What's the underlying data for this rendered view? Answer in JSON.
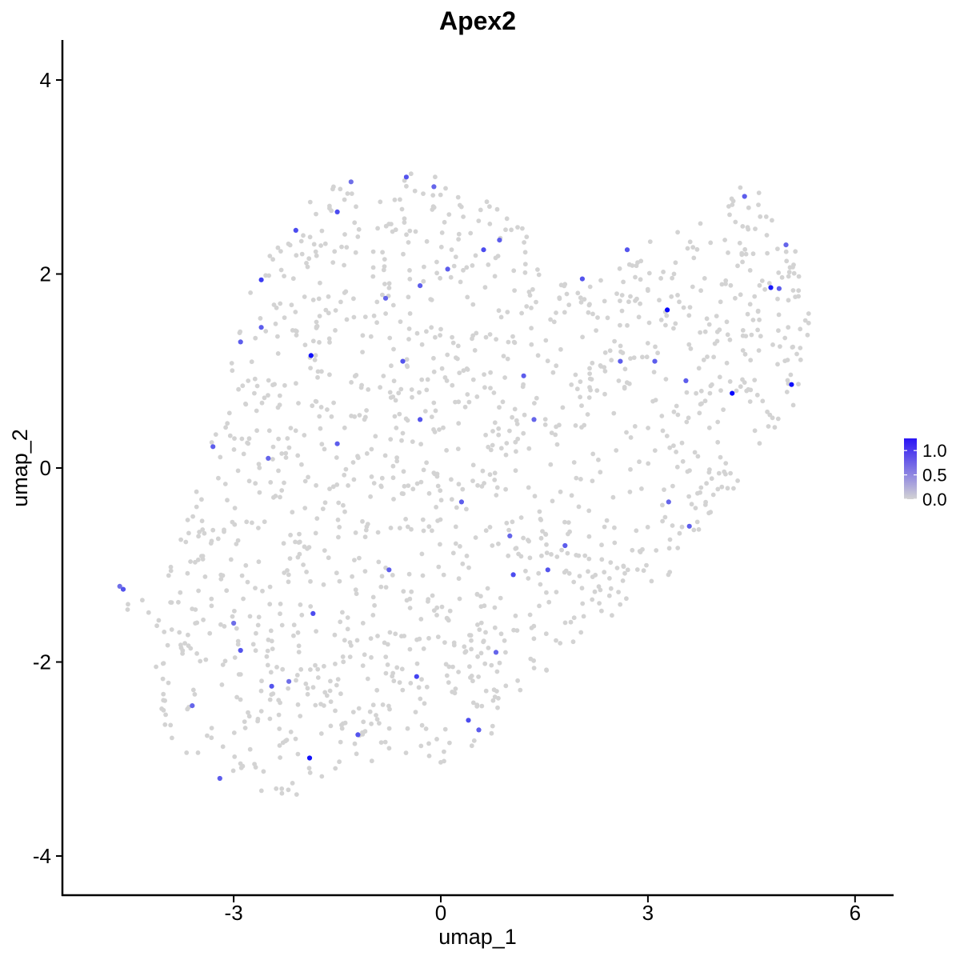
{
  "chart_data": {
    "type": "scatter",
    "title": "Apex2",
    "xlabel": "umap_1",
    "ylabel": "umap_2",
    "xlim": [
      -5.4,
      6.6
    ],
    "ylim": [
      -4.35,
      4.35
    ],
    "x_ticks": [
      -3,
      0,
      3,
      6
    ],
    "y_ticks": [
      -4,
      -2,
      0,
      2,
      4
    ],
    "x_tick_labels": [
      "-3",
      "0",
      "3",
      "6"
    ],
    "y_tick_labels": [
      "-4",
      "-2",
      "0",
      "2",
      "4"
    ],
    "grid": false,
    "color_scale": {
      "low": "#d3d3d3",
      "high": "#0000ff",
      "range": [
        0,
        1.25
      ],
      "legend_ticks": [
        1.0,
        0.5,
        0.0
      ],
      "legend_labels": [
        "1.0",
        "0.5",
        "0.0"
      ],
      "legend_position": "right"
    },
    "cell_count_estimate": 1500,
    "expressing_points": [
      {
        "x": 3.28,
        "y": 1.63,
        "v": 1.2
      },
      {
        "x": 4.22,
        "y": 0.77,
        "v": 1.2
      },
      {
        "x": 5.08,
        "y": 0.86,
        "v": 1.15
      },
      {
        "x": 4.78,
        "y": 1.86,
        "v": 1.1
      },
      {
        "x": -1.88,
        "y": 1.16,
        "v": 1.15
      },
      {
        "x": -1.9,
        "y": -2.99,
        "v": 1.15
      },
      {
        "x": -2.6,
        "y": 1.94,
        "v": 0.9
      },
      {
        "x": -2.1,
        "y": 2.45,
        "v": 0.8
      },
      {
        "x": -1.5,
        "y": 2.64,
        "v": 0.8
      },
      {
        "x": -0.5,
        "y": 3.0,
        "v": 0.75
      },
      {
        "x": 0.62,
        "y": 2.25,
        "v": 0.8
      },
      {
        "x": 0.85,
        "y": 2.35,
        "v": 0.7
      },
      {
        "x": 0.1,
        "y": 2.05,
        "v": 0.7
      },
      {
        "x": -0.3,
        "y": 1.88,
        "v": 0.7
      },
      {
        "x": -0.8,
        "y": 1.75,
        "v": 0.65
      },
      {
        "x": -0.55,
        "y": 1.1,
        "v": 0.75
      },
      {
        "x": -0.3,
        "y": 0.5,
        "v": 0.75
      },
      {
        "x": -1.5,
        "y": 0.25,
        "v": 0.7
      },
      {
        "x": -3.3,
        "y": 0.22,
        "v": 0.7
      },
      {
        "x": -2.5,
        "y": 0.1,
        "v": 0.65
      },
      {
        "x": -2.6,
        "y": 1.45,
        "v": 0.7
      },
      {
        "x": -2.9,
        "y": 1.3,
        "v": 0.7
      },
      {
        "x": -1.85,
        "y": -1.5,
        "v": 0.8
      },
      {
        "x": -2.45,
        "y": -2.25,
        "v": 0.75
      },
      {
        "x": -2.9,
        "y": -1.88,
        "v": 0.75
      },
      {
        "x": -0.35,
        "y": -2.15,
        "v": 0.85
      },
      {
        "x": 0.4,
        "y": -2.6,
        "v": 0.8
      },
      {
        "x": 0.55,
        "y": -2.7,
        "v": 0.7
      },
      {
        "x": -1.2,
        "y": -2.75,
        "v": 0.75
      },
      {
        "x": -3.2,
        "y": -3.2,
        "v": 0.7
      },
      {
        "x": -3.6,
        "y": -2.45,
        "v": 0.65
      },
      {
        "x": -4.6,
        "y": -1.25,
        "v": 0.75
      },
      {
        "x": -4.65,
        "y": -1.22,
        "v": 0.6
      },
      {
        "x": 1.05,
        "y": -1.1,
        "v": 0.8
      },
      {
        "x": 1.55,
        "y": -1.05,
        "v": 0.75
      },
      {
        "x": 2.6,
        "y": 1.1,
        "v": 0.7
      },
      {
        "x": 2.7,
        "y": 2.25,
        "v": 0.75
      },
      {
        "x": 3.55,
        "y": 0.9,
        "v": 0.7
      },
      {
        "x": 3.1,
        "y": 1.1,
        "v": 0.7
      },
      {
        "x": 4.4,
        "y": 2.8,
        "v": 0.7
      },
      {
        "x": 4.9,
        "y": 1.85,
        "v": 0.7
      },
      {
        "x": 5.0,
        "y": 2.3,
        "v": 0.65
      },
      {
        "x": 3.6,
        "y": -0.6,
        "v": 0.7
      },
      {
        "x": 3.3,
        "y": -0.35,
        "v": 0.65
      },
      {
        "x": 2.05,
        "y": 1.95,
        "v": 0.75
      },
      {
        "x": 1.8,
        "y": -0.8,
        "v": 0.7
      },
      {
        "x": 0.3,
        "y": -0.35,
        "v": 0.7
      },
      {
        "x": -0.75,
        "y": -1.05,
        "v": 0.7
      },
      {
        "x": 1.2,
        "y": 0.95,
        "v": 0.7
      },
      {
        "x": 1.35,
        "y": 0.5,
        "v": 0.65
      },
      {
        "x": -1.3,
        "y": 2.95,
        "v": 0.6
      },
      {
        "x": -0.1,
        "y": 2.9,
        "v": 0.65
      },
      {
        "x": -3.0,
        "y": -1.6,
        "v": 0.6
      },
      {
        "x": -2.2,
        "y": -2.2,
        "v": 0.6
      },
      {
        "x": 0.8,
        "y": -1.9,
        "v": 0.65
      },
      {
        "x": 1.0,
        "y": -0.7,
        "v": 0.65
      }
    ]
  }
}
